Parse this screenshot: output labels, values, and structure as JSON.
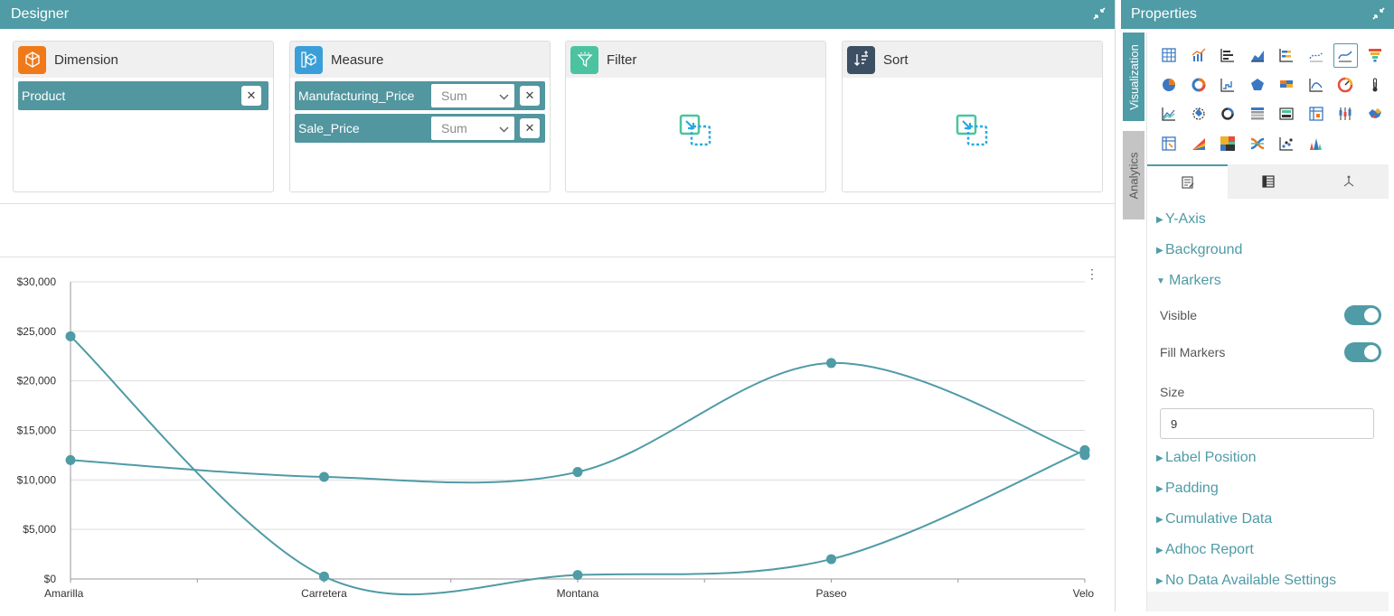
{
  "designer": {
    "title": "Designer",
    "wells": {
      "dimension": {
        "title": "Dimension",
        "items": [
          {
            "label": "Product"
          }
        ]
      },
      "measure": {
        "title": "Measure",
        "items": [
          {
            "label": "Manufacturing_Price",
            "agg": "Sum"
          },
          {
            "label": "Sale_Price",
            "agg": "Sum"
          }
        ]
      },
      "filter": {
        "title": "Filter"
      },
      "sort": {
        "title": "Sort"
      }
    }
  },
  "chart_data": {
    "type": "line",
    "categories": [
      "Amarilla",
      "Carretera",
      "Montana",
      "Paseo",
      "Velo"
    ],
    "series": [
      {
        "values": [
          24500,
          250,
          400,
          2000,
          13000
        ]
      },
      {
        "values": [
          12000,
          10300,
          10800,
          21800,
          12500
        ]
      }
    ],
    "y_ticks": [
      "$0",
      "$5,000",
      "$10,000",
      "$15,000",
      "$20,000",
      "$25,000",
      "$30,000"
    ],
    "ylim": [
      0,
      30000
    ],
    "grid": true,
    "smooth": true,
    "color": "#4f9ba6"
  },
  "properties": {
    "title": "Properties",
    "vtabs": [
      "Visualization",
      "Analytics"
    ],
    "sections_top": [
      "Y-Axis",
      "Background"
    ],
    "markers": {
      "title": "Markers",
      "visible_label": "Visible",
      "visible": true,
      "fill_label": "Fill Markers",
      "fill": true,
      "size_label": "Size",
      "size_value": "9"
    },
    "sections_bottom": [
      "Label Position",
      "Padding",
      "Cumulative Data",
      "Adhoc Report",
      "No Data Available Settings"
    ]
  },
  "colors": {
    "accent": "#4f9ba6",
    "chip": "#52969f"
  }
}
